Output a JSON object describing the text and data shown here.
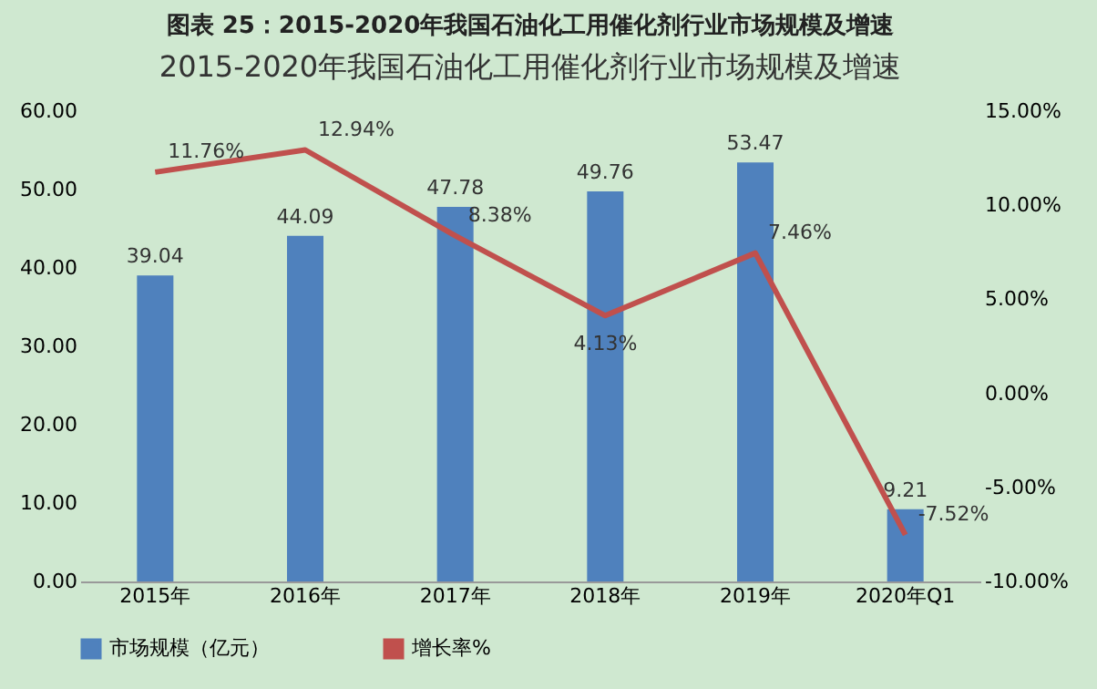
{
  "chart_data": {
    "type": "bar",
    "title": "图表 25：2015-2020年我国石油化工用催化剂行业市场规模及增速",
    "subtitle": "2015-2020年我国石油化工用催化剂行业市场规模及增速",
    "categories": [
      "2015年",
      "2016年",
      "2017年",
      "2018年",
      "2019年",
      "2020年Q1"
    ],
    "series": [
      {
        "name": "市场规模（亿元）",
        "color": "#4f81bd",
        "values": [
          39.04,
          44.09,
          47.78,
          49.76,
          53.47,
          9.21
        ],
        "value_labels": [
          "39.04",
          "44.09",
          "47.78",
          "49.76",
          "53.47",
          "9.21"
        ]
      },
      {
        "name": "增长率%",
        "type": "line",
        "axis": "y2",
        "color": "#c0504d",
        "values": [
          11.76,
          12.94,
          8.38,
          4.13,
          7.46,
          -7.52
        ],
        "value_labels": [
          "11.76%",
          "12.94%",
          "8.38%",
          "4.13%",
          "7.46%",
          "-7.52%"
        ]
      }
    ],
    "ylim": [
      0,
      60
    ],
    "yticks": [
      {
        "value": 0,
        "label": "0.00"
      },
      {
        "value": 10,
        "label": "10.00"
      },
      {
        "value": 20,
        "label": "20.00"
      },
      {
        "value": 30,
        "label": "30.00"
      },
      {
        "value": 40,
        "label": "40.00"
      },
      {
        "value": 50,
        "label": "50.00"
      },
      {
        "value": 60,
        "label": "60.00"
      }
    ],
    "y2lim": [
      -10,
      15
    ],
    "y2ticks": [
      {
        "value": -10,
        "label": "-10.00%"
      },
      {
        "value": -5,
        "label": "-5.00%"
      },
      {
        "value": 0,
        "label": "0.00%"
      },
      {
        "value": 5,
        "label": "5.00%"
      },
      {
        "value": 10,
        "label": "10.00%"
      },
      {
        "value": 15,
        "label": "15.00%"
      }
    ],
    "grid": false,
    "legend": "bottom"
  }
}
